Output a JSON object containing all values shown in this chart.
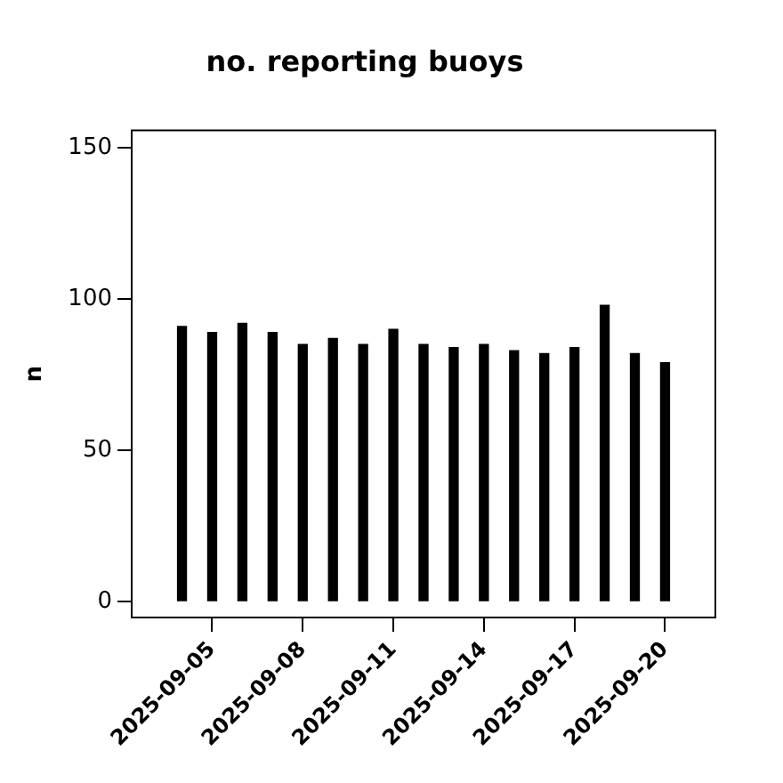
{
  "chart_data": {
    "type": "bar",
    "title": "no. reporting buoys",
    "ylabel": "n",
    "x": [
      "2025-09-04",
      "2025-09-05",
      "2025-09-06",
      "2025-09-07",
      "2025-09-08",
      "2025-09-09",
      "2025-09-10",
      "2025-09-11",
      "2025-09-12",
      "2025-09-13",
      "2025-09-14",
      "2025-09-15",
      "2025-09-16",
      "2025-09-17",
      "2025-09-18",
      "2025-09-19",
      "2025-09-20"
    ],
    "values": [
      91,
      89,
      92,
      89,
      85,
      87,
      85,
      90,
      85,
      84,
      85,
      83,
      82,
      84,
      98,
      82,
      79
    ],
    "color": "#000000",
    "xlim": [
      "2025-09-02T08:00",
      "2025-09-21T16:00"
    ],
    "xticks": [
      "2025-09-05",
      "2025-09-08",
      "2025-09-11",
      "2025-09-14",
      "2025-09-17",
      "2025-09-20"
    ],
    "ylim": [
      -5.3,
      155.9
    ],
    "yticks": [
      0,
      50,
      100,
      150
    ],
    "grid": false,
    "legend": false
  }
}
